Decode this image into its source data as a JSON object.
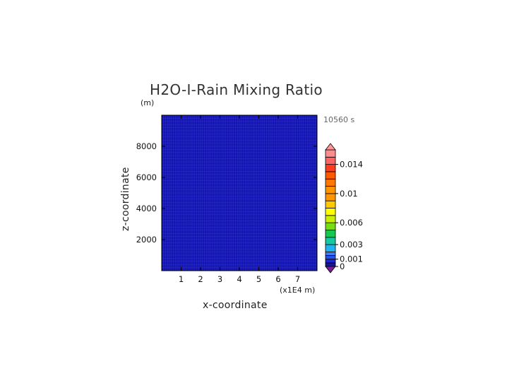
{
  "chart_data": {
    "type": "heatmap",
    "title": "H2O-I-Rain Mixing Ratio",
    "xlabel": "x-coordinate",
    "ylabel": "z-coordinate",
    "y_unit": "(m)",
    "x_unit": "(x1E4 m)",
    "time_label": "10560 s",
    "xlim": [
      0,
      8
    ],
    "ylim": [
      0,
      10000
    ],
    "x_ticks": [
      1,
      2,
      3,
      4,
      5,
      6,
      7
    ],
    "x_tick_labels": [
      "1",
      "2",
      "3",
      "4",
      "5",
      "6",
      "7"
    ],
    "y_ticks": [
      2000,
      4000,
      6000,
      8000
    ],
    "y_tick_labels": [
      "2000",
      "4000",
      "6000",
      "8000"
    ],
    "field_fill_value": 0,
    "field_fill_color": "#1414b4",
    "colorbar": {
      "min": 0,
      "max": 0.016,
      "labeled_ticks": [
        0,
        0.001,
        0.003,
        0.006,
        0.01,
        0.014
      ],
      "labeled_tick_text": [
        "0",
        "0.001",
        "0.003",
        "0.006",
        "0.01",
        "0.014"
      ],
      "levels": [
        0,
        0.0005,
        0.001,
        0.0015,
        0.002,
        0.003,
        0.004,
        0.005,
        0.006,
        0.007,
        0.008,
        0.009,
        0.01,
        0.011,
        0.012,
        0.013,
        0.014,
        0.015,
        0.016
      ],
      "colors": [
        "#1a14a0",
        "#1e28d2",
        "#2850f0",
        "#3c7cf5",
        "#1eb4f0",
        "#14c8a0",
        "#14c850",
        "#78dc14",
        "#c8f000",
        "#ffff00",
        "#ffc800",
        "#ff9600",
        "#ff9600",
        "#ff7800",
        "#ff5a00",
        "#ff3c1e",
        "#ff6464",
        "#ff8c8c"
      ],
      "under_color": "#781e96",
      "over_color": "#ff9696"
    }
  }
}
